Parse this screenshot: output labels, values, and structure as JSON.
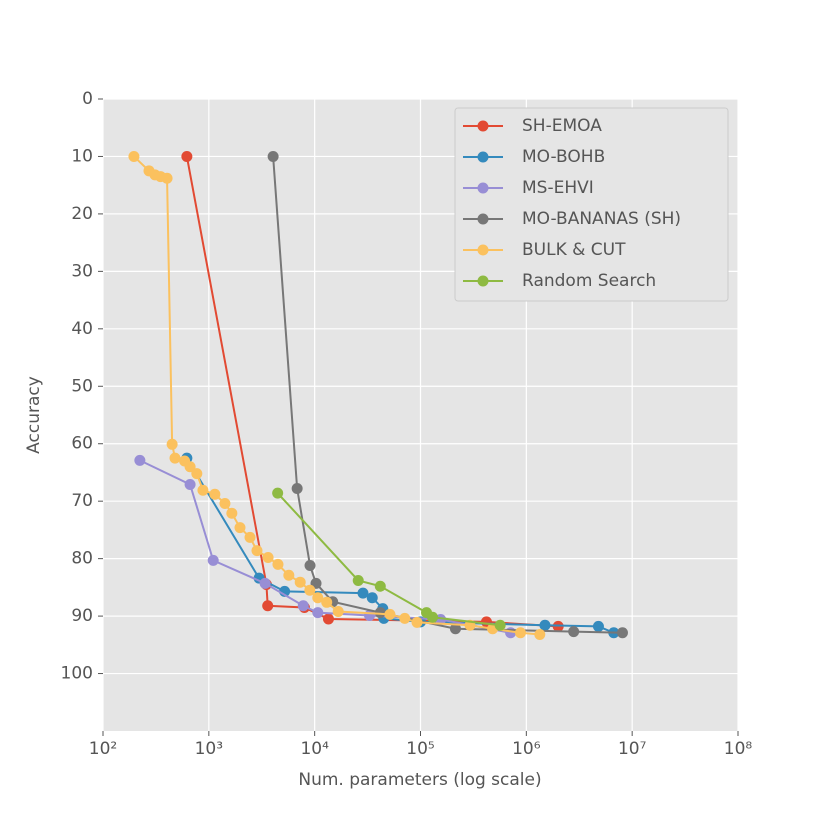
{
  "chart_data": {
    "type": "line",
    "xlabel": "Num. parameters (log scale)",
    "ylabel": "Accuracy",
    "xscale": "log",
    "xlim": [
      100,
      100000000
    ],
    "xticks": [
      {
        "value": 100,
        "label": "10²"
      },
      {
        "value": 1000,
        "label": "10³"
      },
      {
        "value": 10000,
        "label": "10⁴"
      },
      {
        "value": 100000,
        "label": "10⁵"
      },
      {
        "value": 1000000,
        "label": "10⁶"
      },
      {
        "value": 10000000,
        "label": "10⁷"
      },
      {
        "value": 100000000,
        "label": "10⁸"
      }
    ],
    "ylim": [
      0,
      110
    ],
    "y_inverted": true,
    "yticks": [
      0,
      10,
      20,
      30,
      40,
      50,
      60,
      70,
      80,
      90,
      100
    ],
    "grid": true,
    "legend": "upper right",
    "series": [
      {
        "name": "SH-EMOA",
        "color": "#e24a33",
        "x": [
          620,
          3500,
          3600,
          8000,
          13500,
          420000,
          2000000
        ],
        "values": [
          10,
          84.5,
          88.2,
          88.5,
          90.5,
          91,
          91.8
        ]
      },
      {
        "name": "MO-BOHB",
        "color": "#348abd",
        "x": [
          620,
          2980,
          5200,
          28600,
          35000,
          44000,
          45000,
          100000,
          1500000,
          4800000,
          6700000
        ],
        "values": [
          62.5,
          83.4,
          85.7,
          86,
          86.8,
          88.7,
          90.4,
          91,
          91.6,
          91.8,
          92.9
        ]
      },
      {
        "name": "MS-EHVI",
        "color": "#988ed5",
        "x": [
          223,
          665,
          1100,
          3400,
          7800,
          10700,
          33000,
          155000,
          710000
        ],
        "values": [
          62.9,
          67.1,
          80.3,
          84.3,
          88.2,
          89.4,
          89.9,
          90.6,
          92.9
        ]
      },
      {
        "name": "MO-BANANAS (SH)",
        "color": "#777777",
        "x": [
          4050,
          6830,
          9040,
          10300,
          14800,
          41700,
          214000,
          2800000,
          8100000
        ],
        "values": [
          10,
          67.8,
          81.2,
          84.3,
          87.5,
          89.4,
          92.2,
          92.7,
          92.9
        ]
      },
      {
        "name": "BULK & CUT",
        "color": "#fbc15e",
        "x": [
          196,
          272,
          310,
          350,
          403,
          450,
          479,
          590,
          665,
          770,
          880,
          1140,
          1420,
          1650,
          1970,
          2450,
          2850,
          3630,
          4500,
          5700,
          7300,
          9000,
          10700,
          13000,
          16700,
          51400,
          71000,
          92700,
          294000,
          480000,
          880000,
          1340000
        ],
        "values": [
          10,
          12.5,
          13.2,
          13.5,
          13.8,
          60.1,
          62.5,
          63,
          64,
          65.2,
          68.1,
          68.8,
          70.4,
          72.1,
          74.6,
          76.3,
          78.6,
          79.8,
          81,
          82.9,
          84.1,
          85.5,
          86.8,
          87.6,
          89.2,
          89.7,
          90.4,
          91.1,
          91.6,
          92.2,
          92.9,
          93.2
        ]
      },
      {
        "name": "Random Search",
        "color": "#8eba42",
        "x": [
          4470,
          25800,
          41700,
          114000,
          130000,
          566000
        ],
        "values": [
          68.6,
          83.8,
          84.8,
          89.4,
          90.2,
          91.6
        ]
      }
    ]
  }
}
